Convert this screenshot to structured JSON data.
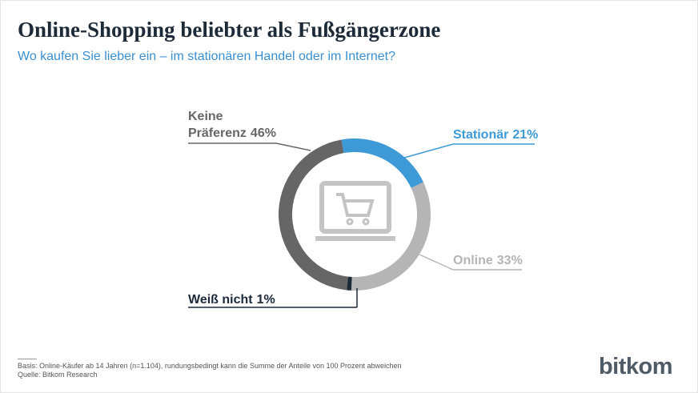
{
  "chart_data": {
    "type": "donut",
    "title": "Online-Shopping beliebter als Fußgängerzone",
    "subtitle": "Wo kaufen Sie lieber ein – im stationären Handel oder im Internet?",
    "categories": [
      "Stationär",
      "Online",
      "Weiß nicht",
      "Keine Präferenz"
    ],
    "values": [
      21,
      33,
      1,
      46
    ],
    "value_labels": [
      "21%",
      "33%",
      "1%",
      "46%"
    ],
    "colors": [
      "#3d9ad6",
      "#b5b5b5",
      "#1c2a3a",
      "#666666"
    ],
    "notes": [
      "Basis: Online-Käufer ab 14 Jahren (n=1.104), rundungsbedingt kann die Summe der Anteile von 100 Prozent abweichen",
      "Quelle: Bitkom Research"
    ],
    "logo": "bitkom"
  }
}
